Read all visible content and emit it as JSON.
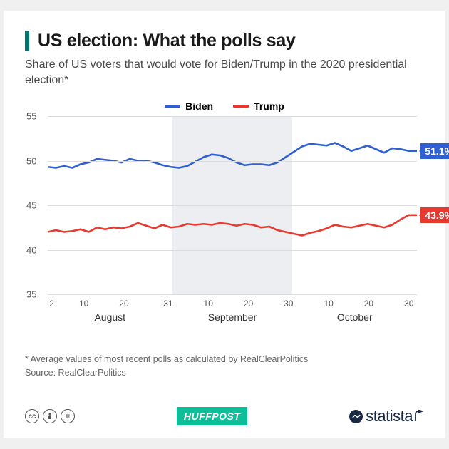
{
  "title": "US election: What the polls say",
  "subtitle": "Share of US voters that would vote for Biden/Trump in the 2020 presidential election*",
  "legend": {
    "biden": "Biden",
    "trump": "Trump"
  },
  "colors": {
    "biden": "#2f5fd0",
    "trump": "#e8392f",
    "grid": "#dcdcdc",
    "sept_band": "#eceef1",
    "accent": "#00766e",
    "text": "#1a1a1a"
  },
  "chart": {
    "ylim": [
      35,
      55
    ],
    "yticks": [
      35,
      40,
      45,
      50,
      55
    ],
    "months": [
      {
        "name": "August",
        "ticks": [
          2,
          10,
          20,
          31
        ],
        "days": 31
      },
      {
        "name": "September",
        "ticks": [
          10,
          20,
          30
        ],
        "days": 30,
        "shaded": true
      },
      {
        "name": "October",
        "ticks": [
          10,
          20,
          30
        ],
        "days": 31
      }
    ],
    "line_width": 2.6,
    "biden_series": [
      49.3,
      49.2,
      49.4,
      49.2,
      49.6,
      49.8,
      50.2,
      50.1,
      50.0,
      49.8,
      50.2,
      50.0,
      50.0,
      49.8,
      49.5,
      49.3,
      49.2,
      49.4,
      49.9,
      50.4,
      50.7,
      50.6,
      50.3,
      49.8,
      49.5,
      49.6,
      49.6,
      49.5,
      49.8,
      50.4,
      51.0,
      51.6,
      51.9,
      51.8,
      51.7,
      52.0,
      51.6,
      51.1,
      51.4,
      51.7,
      51.3,
      50.9,
      51.4,
      51.3,
      51.1,
      51.1
    ],
    "trump_series": [
      42.0,
      42.2,
      42.0,
      42.1,
      42.3,
      42.0,
      42.5,
      42.3,
      42.5,
      42.4,
      42.6,
      43.0,
      42.7,
      42.4,
      42.8,
      42.5,
      42.6,
      42.9,
      42.8,
      42.9,
      42.8,
      43.0,
      42.9,
      42.7,
      42.9,
      42.8,
      42.5,
      42.6,
      42.2,
      42.0,
      41.8,
      41.6,
      41.9,
      42.1,
      42.4,
      42.8,
      42.6,
      42.5,
      42.7,
      42.9,
      42.7,
      42.5,
      42.8,
      43.4,
      43.9,
      43.9
    ],
    "callouts": {
      "biden": "51.1%",
      "trump": "43.9%"
    }
  },
  "footnote_line1": "* Average values of most recent polls as calculated by RealClearPolitics",
  "footnote_line2": "Source: RealClearPolitics",
  "footer": {
    "huffpost": "HUFFPOST",
    "statista": "statista"
  }
}
